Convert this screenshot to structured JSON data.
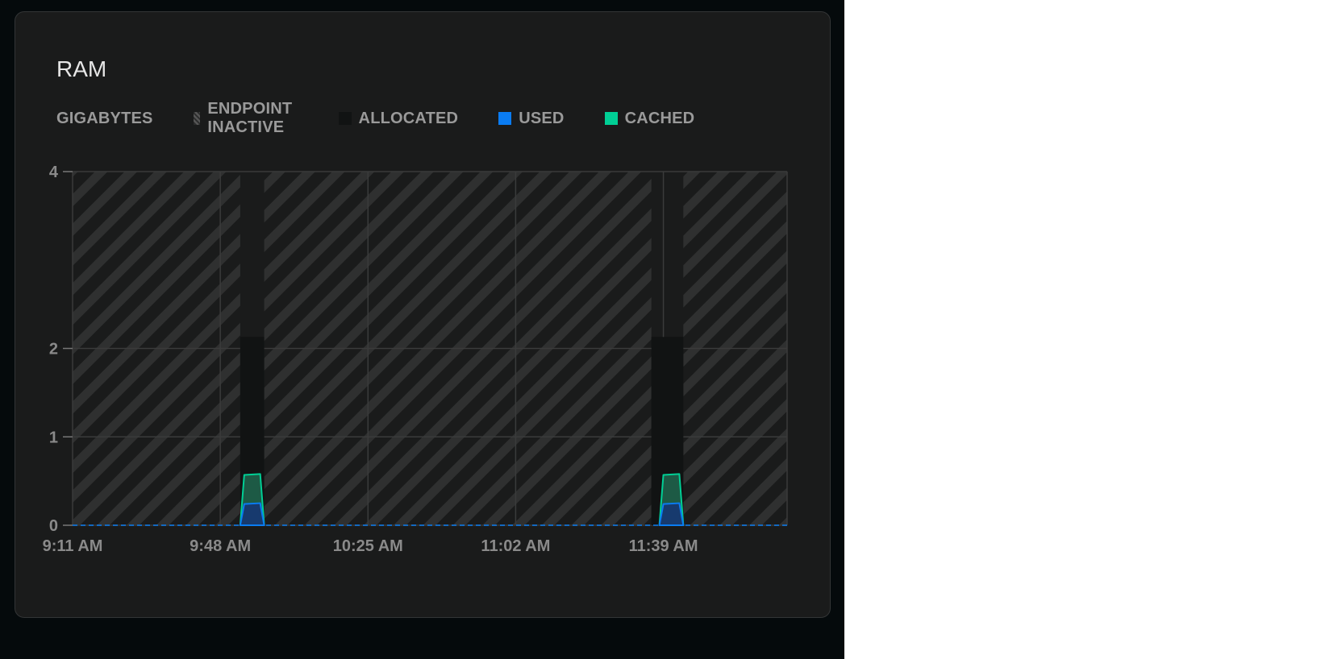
{
  "card": {
    "title": "RAM"
  },
  "legend": {
    "unit_label": "GIGABYTES",
    "items": [
      {
        "label": "ENDPOINT INACTIVE",
        "icon": "hatched-swatch"
      },
      {
        "label": "ALLOCATED",
        "color": "#111313"
      },
      {
        "label": "USED",
        "color": "#0a7cf2"
      },
      {
        "label": "CACHED",
        "color": "#00cf95"
      }
    ]
  },
  "chart_data": {
    "type": "area",
    "ylabel": "GIGABYTES",
    "ylim": [
      0,
      4
    ],
    "yticks": [
      "0",
      "1",
      "2",
      "4"
    ],
    "xlim": [
      "9:11 AM",
      "12:10 PM"
    ],
    "xticks": [
      "9:11 AM",
      "9:48 AM",
      "10:25 AM",
      "11:02 AM",
      "11:39 AM"
    ],
    "grid": true,
    "legend_position": "top-left",
    "inactive_ranges": [
      [
        "9:11 AM",
        "9:53 AM"
      ],
      [
        "9:59 AM",
        "11:36 AM"
      ],
      [
        "11:44 AM",
        "12:10 PM"
      ]
    ],
    "series": [
      {
        "name": "ALLOCATED",
        "color": "#111313",
        "segments": [
          {
            "x": [
              "9:53 AM",
              "9:59 AM"
            ],
            "y": [
              2.13,
              2.13
            ]
          },
          {
            "x": [
              "11:36 AM",
              "11:44 AM"
            ],
            "y": [
              2.13,
              2.13
            ]
          }
        ]
      },
      {
        "name": "CACHED",
        "color": "#00cf95",
        "segments": [
          {
            "x": [
              "9:53 AM",
              "9:54 AM",
              "9:58 AM",
              "9:59 AM"
            ],
            "y": [
              0,
              0.57,
              0.58,
              0
            ]
          },
          {
            "x": [
              "11:38 AM",
              "11:39 AM",
              "11:43 AM",
              "11:44 AM"
            ],
            "y": [
              0,
              0.57,
              0.58,
              0
            ]
          }
        ]
      },
      {
        "name": "USED",
        "color": "#0a7cf2",
        "segments": [
          {
            "x": [
              "9:53 AM",
              "9:54 AM",
              "9:58 AM",
              "9:59 AM"
            ],
            "y": [
              0,
              0.24,
              0.25,
              0
            ]
          },
          {
            "x": [
              "11:38 AM",
              "11:39 AM",
              "11:43 AM",
              "11:44 AM"
            ],
            "y": [
              0,
              0.24,
              0.25,
              0
            ]
          }
        ]
      }
    ]
  }
}
